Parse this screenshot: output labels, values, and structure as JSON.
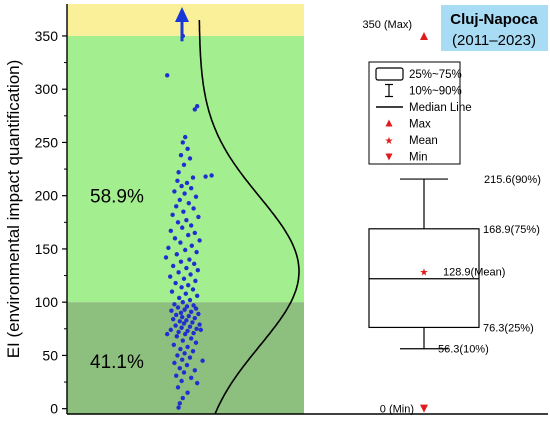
{
  "chart_data": {
    "type": "scatter",
    "title": "Cluj-Napoca",
    "subtitle": "(2011–2023)",
    "ylabel": "EI (environmental impact quantification)",
    "xlabel": "",
    "ylim": [
      -5,
      380
    ],
    "yticks": [
      0,
      50,
      100,
      150,
      200,
      250,
      300,
      350
    ],
    "bands": [
      {
        "from": 350,
        "to": 380,
        "color": "#fbf09a"
      },
      {
        "from": 100,
        "to": 350,
        "color": "#a3ef8f"
      },
      {
        "from": -5,
        "to": 100,
        "color": "#8dbf7f"
      }
    ],
    "band_labels": [
      {
        "text": "58.9%",
        "y": 200
      },
      {
        "text": "41.1%",
        "y": 45
      }
    ],
    "points": [
      {
        "x": 0.38,
        "y": 350
      },
      {
        "x": 0.12,
        "y": 313
      },
      {
        "x": 0.62,
        "y": 284
      },
      {
        "x": 0.58,
        "y": 281
      },
      {
        "x": 0.42,
        "y": 255
      },
      {
        "x": 0.38,
        "y": 250
      },
      {
        "x": 0.46,
        "y": 244
      },
      {
        "x": 0.35,
        "y": 238
      },
      {
        "x": 0.5,
        "y": 235
      },
      {
        "x": 0.4,
        "y": 229
      },
      {
        "x": 0.31,
        "y": 222
      },
      {
        "x": 0.86,
        "y": 219
      },
      {
        "x": 0.76,
        "y": 218
      },
      {
        "x": 0.55,
        "y": 217
      },
      {
        "x": 0.29,
        "y": 214
      },
      {
        "x": 0.45,
        "y": 212
      },
      {
        "x": 0.36,
        "y": 209
      },
      {
        "x": 0.52,
        "y": 207
      },
      {
        "x": 0.24,
        "y": 204
      },
      {
        "x": 0.41,
        "y": 202
      },
      {
        "x": 0.6,
        "y": 199
      },
      {
        "x": 0.33,
        "y": 196
      },
      {
        "x": 0.48,
        "y": 193
      },
      {
        "x": 0.27,
        "y": 190
      },
      {
        "x": 0.56,
        "y": 188
      },
      {
        "x": 0.39,
        "y": 185
      },
      {
        "x": 0.21,
        "y": 182
      },
      {
        "x": 0.64,
        "y": 180
      },
      {
        "x": 0.44,
        "y": 177
      },
      {
        "x": 0.3,
        "y": 175
      },
      {
        "x": 0.52,
        "y": 172
      },
      {
        "x": 0.37,
        "y": 170
      },
      {
        "x": 0.18,
        "y": 167
      },
      {
        "x": 0.58,
        "y": 165
      },
      {
        "x": 0.47,
        "y": 163
      },
      {
        "x": 0.25,
        "y": 160
      },
      {
        "x": 0.66,
        "y": 158
      },
      {
        "x": 0.34,
        "y": 156
      },
      {
        "x": 0.53,
        "y": 153
      },
      {
        "x": 0.14,
        "y": 151
      },
      {
        "x": 0.42,
        "y": 149
      },
      {
        "x": 0.61,
        "y": 147
      },
      {
        "x": 0.28,
        "y": 145
      },
      {
        "x": 0.1,
        "y": 142
      },
      {
        "x": 0.49,
        "y": 140
      },
      {
        "x": 0.35,
        "y": 138
      },
      {
        "x": 0.57,
        "y": 136
      },
      {
        "x": 0.22,
        "y": 134
      },
      {
        "x": 0.44,
        "y": 132
      },
      {
        "x": 0.63,
        "y": 130
      },
      {
        "x": 0.31,
        "y": 128
      },
      {
        "x": 0.51,
        "y": 126
      },
      {
        "x": 0.17,
        "y": 124
      },
      {
        "x": 0.4,
        "y": 122
      },
      {
        "x": 0.59,
        "y": 120
      },
      {
        "x": 0.26,
        "y": 118
      },
      {
        "x": 0.47,
        "y": 116
      },
      {
        "x": 0.36,
        "y": 114
      },
      {
        "x": 0.55,
        "y": 112
      },
      {
        "x": 0.2,
        "y": 110
      },
      {
        "x": 0.43,
        "y": 108
      },
      {
        "x": 0.62,
        "y": 106
      },
      {
        "x": 0.32,
        "y": 104
      },
      {
        "x": 0.5,
        "y": 102
      },
      {
        "x": 0.38,
        "y": 100
      },
      {
        "x": 0.24,
        "y": 98
      },
      {
        "x": 0.56,
        "y": 97
      },
      {
        "x": 0.45,
        "y": 96
      },
      {
        "x": 0.3,
        "y": 95
      },
      {
        "x": 0.6,
        "y": 94
      },
      {
        "x": 0.41,
        "y": 93
      },
      {
        "x": 0.19,
        "y": 92
      },
      {
        "x": 0.52,
        "y": 91
      },
      {
        "x": 0.35,
        "y": 90
      },
      {
        "x": 0.64,
        "y": 89
      },
      {
        "x": 0.27,
        "y": 88
      },
      {
        "x": 0.48,
        "y": 87
      },
      {
        "x": 0.37,
        "y": 86
      },
      {
        "x": 0.58,
        "y": 85
      },
      {
        "x": 0.22,
        "y": 84
      },
      {
        "x": 0.44,
        "y": 83
      },
      {
        "x": 0.33,
        "y": 82
      },
      {
        "x": 0.54,
        "y": 81
      },
      {
        "x": 0.4,
        "y": 80
      },
      {
        "x": 0.66,
        "y": 79
      },
      {
        "x": 0.26,
        "y": 78
      },
      {
        "x": 0.5,
        "y": 77
      },
      {
        "x": 0.36,
        "y": 76
      },
      {
        "x": 0.61,
        "y": 75
      },
      {
        "x": 0.18,
        "y": 74
      },
      {
        "x": 0.46,
        "y": 73
      },
      {
        "x": 0.31,
        "y": 72
      },
      {
        "x": 0.56,
        "y": 71
      },
      {
        "x": 0.42,
        "y": 70
      },
      {
        "x": 0.12,
        "y": 70
      },
      {
        "x": 0.68,
        "y": 74
      },
      {
        "x": 0.28,
        "y": 68
      },
      {
        "x": 0.52,
        "y": 66
      },
      {
        "x": 0.38,
        "y": 64
      },
      {
        "x": 0.6,
        "y": 62
      },
      {
        "x": 0.23,
        "y": 60
      },
      {
        "x": 0.46,
        "y": 58
      },
      {
        "x": 0.34,
        "y": 56
      },
      {
        "x": 0.55,
        "y": 54
      },
      {
        "x": 0.41,
        "y": 52
      },
      {
        "x": 0.29,
        "y": 50
      },
      {
        "x": 0.5,
        "y": 48
      },
      {
        "x": 0.37,
        "y": 46
      },
      {
        "x": 0.71,
        "y": 45
      },
      {
        "x": 0.24,
        "y": 43
      },
      {
        "x": 0.45,
        "y": 41
      },
      {
        "x": 0.33,
        "y": 38
      },
      {
        "x": 0.58,
        "y": 36
      },
      {
        "x": 0.4,
        "y": 34
      },
      {
        "x": 0.27,
        "y": 31
      },
      {
        "x": 0.52,
        "y": 29
      },
      {
        "x": 0.36,
        "y": 26
      },
      {
        "x": 0.62,
        "y": 24
      },
      {
        "x": 0.3,
        "y": 20
      },
      {
        "x": 0.46,
        "y": 15
      },
      {
        "x": 0.38,
        "y": 10
      },
      {
        "x": 0.33,
        "y": 5
      },
      {
        "x": 0.31,
        "y": 1
      }
    ],
    "point_color": "#1f2fd0",
    "arrow_color": "#1737d6",
    "box": {
      "p10": 56.3,
      "q1": 76.3,
      "median": 122,
      "mean": 128.9,
      "q3": 168.9,
      "p90": 215.6,
      "max": 350,
      "min": 0
    },
    "box_labels": {
      "p90": "215.6(90%)",
      "q3": "168.9(75%)",
      "mean": "128.9(Mean)",
      "q1": "76.3(25%)",
      "p10": "56.3(10%)",
      "max": "350 (Max)",
      "min": "0 (Min)"
    },
    "legend": [
      {
        "symbol": "box",
        "label": "25%~75%"
      },
      {
        "symbol": "whisker",
        "label": "10%~90%"
      },
      {
        "symbol": "line",
        "label": "Median Line"
      },
      {
        "symbol": "triangle-up",
        "label": "Max"
      },
      {
        "symbol": "star",
        "label": "Mean"
      },
      {
        "symbol": "triangle-down",
        "label": "Min"
      }
    ],
    "marker_color": "#e01b1b",
    "title_box_color": "#a8dcf5"
  }
}
